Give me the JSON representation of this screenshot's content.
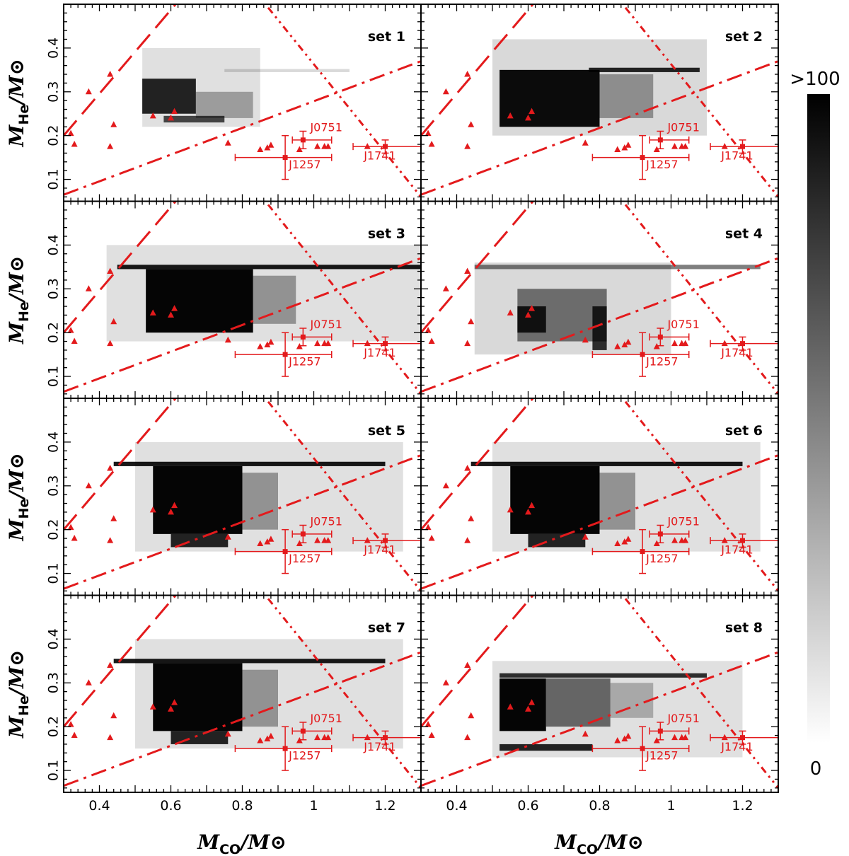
{
  "chart_data": {
    "type": "heatmap",
    "title": "",
    "xlabel": "M_CO/M_⊙",
    "ylabel": "M_He/M_⊙",
    "x_label": {
      "main": "M",
      "sub": "CO",
      "rest": "/M",
      "sun": "⊙"
    },
    "y_label": {
      "main": "M",
      "sub": "He",
      "rest": "/M",
      "sun": "⊙"
    },
    "xlim": [
      0.3,
      1.3
    ],
    "ylim": [
      0.05,
      0.5
    ],
    "xticks": [
      "0.4",
      "0.6",
      "0.8",
      "1",
      "1.2"
    ],
    "yticks": [
      "0.1",
      "0.2",
      "0.3",
      "0.4"
    ],
    "colorbar": {
      "min_label": "0",
      "max_label": ">100"
    },
    "colors": {
      "data": "#e31a1c",
      "density": "#000000"
    },
    "reference_lines": [
      {
        "style": "dashed",
        "points": [
          [
            0.3,
            0.2
          ],
          [
            0.65,
            0.535
          ]
        ]
      },
      {
        "style": "dash-dot",
        "points": [
          [
            0.3,
            0.065
          ],
          [
            1.3,
            0.37
          ]
        ]
      },
      {
        "style": "dash-dot-dot",
        "points": [
          [
            0.83,
            0.535
          ],
          [
            1.3,
            0.06
          ]
        ]
      }
    ],
    "points": [
      {
        "x": 0.32,
        "y": 0.205
      },
      {
        "x": 0.33,
        "y": 0.18
      },
      {
        "x": 0.37,
        "y": 0.3
      },
      {
        "x": 0.43,
        "y": 0.34
      },
      {
        "x": 0.43,
        "y": 0.175
      },
      {
        "x": 0.44,
        "y": 0.225
      },
      {
        "x": 0.55,
        "y": 0.245
      },
      {
        "x": 0.6,
        "y": 0.24
      },
      {
        "x": 0.61,
        "y": 0.255
      },
      {
        "x": 0.76,
        "y": 0.183
      },
      {
        "x": 0.85,
        "y": 0.168
      },
      {
        "x": 0.87,
        "y": 0.172
      },
      {
        "x": 0.88,
        "y": 0.178
      },
      {
        "x": 0.96,
        "y": 0.168
      },
      {
        "x": 1.01,
        "y": 0.175
      },
      {
        "x": 1.03,
        "y": 0.175
      },
      {
        "x": 1.04,
        "y": 0.175
      },
      {
        "x": 1.15,
        "y": 0.175
      }
    ],
    "observations": [
      {
        "label": "J0751",
        "x": 0.97,
        "y": 0.19,
        "xerr": [
          0.03,
          0.08
        ],
        "yerr": 0.02,
        "label_x": 0.99,
        "label_y": 0.21
      },
      {
        "label": "J1257",
        "x": 0.92,
        "y": 0.15,
        "xerr": [
          0.14,
          0.13
        ],
        "yerr": 0.05,
        "label_x": 0.93,
        "label_y": 0.125
      },
      {
        "label": "J1741",
        "x": 1.2,
        "y": 0.175,
        "xerr": [
          0.09,
          0.1
        ],
        "yerr": 0.015,
        "label_x": 1.14,
        "label_y": 0.145
      }
    ],
    "panels": [
      {
        "label": "set 1",
        "regions": [
          {
            "x": [
              0.52,
              0.85
            ],
            "y": [
              0.22,
              0.4
            ],
            "w": 0.12
          },
          {
            "x": [
              0.52,
              0.67
            ],
            "y": [
              0.25,
              0.33
            ],
            "w": 0.85
          },
          {
            "x": [
              0.67,
              0.83
            ],
            "y": [
              0.24,
              0.3
            ],
            "w": 0.3
          },
          {
            "x": [
              0.58,
              0.75
            ],
            "y": [
              0.23,
              0.245
            ],
            "w": 0.7
          },
          {
            "x": [
              0.75,
              1.1
            ],
            "y": [
              0.345,
              0.352
            ],
            "w": 0.15
          }
        ]
      },
      {
        "label": "set 2",
        "regions": [
          {
            "x": [
              0.5,
              1.1
            ],
            "y": [
              0.2,
              0.42
            ],
            "w": 0.15
          },
          {
            "x": [
              0.52,
              0.8
            ],
            "y": [
              0.22,
              0.35
            ],
            "w": 0.95
          },
          {
            "x": [
              0.8,
              0.95
            ],
            "y": [
              0.24,
              0.34
            ],
            "w": 0.35
          },
          {
            "x": [
              0.77,
              1.08
            ],
            "y": [
              0.345,
              0.355
            ],
            "w": 0.85
          }
        ]
      },
      {
        "label": "set 3",
        "regions": [
          {
            "x": [
              0.42,
              1.3
            ],
            "y": [
              0.18,
              0.4
            ],
            "w": 0.12
          },
          {
            "x": [
              0.53,
              0.83
            ],
            "y": [
              0.2,
              0.345
            ],
            "w": 0.98
          },
          {
            "x": [
              0.83,
              0.95
            ],
            "y": [
              0.22,
              0.33
            ],
            "w": 0.35
          },
          {
            "x": [
              0.45,
              1.3
            ],
            "y": [
              0.345,
              0.355
            ],
            "w": 0.9
          }
        ]
      },
      {
        "label": "set 4",
        "regions": [
          {
            "x": [
              0.45,
              1.0
            ],
            "y": [
              0.15,
              0.36
            ],
            "w": 0.15
          },
          {
            "x": [
              0.57,
              0.82
            ],
            "y": [
              0.18,
              0.3
            ],
            "w": 0.5
          },
          {
            "x": [
              0.57,
              0.65
            ],
            "y": [
              0.2,
              0.26
            ],
            "w": 0.85
          },
          {
            "x": [
              0.78,
              0.82
            ],
            "y": [
              0.16,
              0.26
            ],
            "w": 0.8
          },
          {
            "x": [
              0.45,
              1.25
            ],
            "y": [
              0.345,
              0.355
            ],
            "w": 0.5
          }
        ]
      },
      {
        "label": "set 5",
        "regions": [
          {
            "x": [
              0.5,
              1.25
            ],
            "y": [
              0.15,
              0.4
            ],
            "w": 0.12
          },
          {
            "x": [
              0.55,
              0.8
            ],
            "y": [
              0.19,
              0.345
            ],
            "w": 0.98
          },
          {
            "x": [
              0.6,
              0.76
            ],
            "y": [
              0.16,
              0.19
            ],
            "w": 0.85
          },
          {
            "x": [
              0.8,
              0.9
            ],
            "y": [
              0.2,
              0.33
            ],
            "w": 0.35
          },
          {
            "x": [
              0.44,
              1.2
            ],
            "y": [
              0.345,
              0.355
            ],
            "w": 0.9
          }
        ]
      },
      {
        "label": "set 6",
        "regions": [
          {
            "x": [
              0.5,
              1.25
            ],
            "y": [
              0.15,
              0.4
            ],
            "w": 0.12
          },
          {
            "x": [
              0.55,
              0.8
            ],
            "y": [
              0.19,
              0.345
            ],
            "w": 0.98
          },
          {
            "x": [
              0.6,
              0.76
            ],
            "y": [
              0.16,
              0.19
            ],
            "w": 0.85
          },
          {
            "x": [
              0.8,
              0.9
            ],
            "y": [
              0.2,
              0.33
            ],
            "w": 0.35
          },
          {
            "x": [
              0.44,
              1.2
            ],
            "y": [
              0.345,
              0.355
            ],
            "w": 0.9
          }
        ]
      },
      {
        "label": "set 7",
        "regions": [
          {
            "x": [
              0.5,
              1.25
            ],
            "y": [
              0.15,
              0.4
            ],
            "w": 0.12
          },
          {
            "x": [
              0.55,
              0.8
            ],
            "y": [
              0.19,
              0.345
            ],
            "w": 0.98
          },
          {
            "x": [
              0.6,
              0.76
            ],
            "y": [
              0.16,
              0.19
            ],
            "w": 0.85
          },
          {
            "x": [
              0.8,
              0.9
            ],
            "y": [
              0.2,
              0.33
            ],
            "w": 0.35
          },
          {
            "x": [
              0.44,
              1.2
            ],
            "y": [
              0.345,
              0.355
            ],
            "w": 0.9
          }
        ]
      },
      {
        "label": "set 8",
        "regions": [
          {
            "x": [
              0.5,
              1.2
            ],
            "y": [
              0.13,
              0.35
            ],
            "w": 0.12
          },
          {
            "x": [
              0.52,
              0.65
            ],
            "y": [
              0.19,
              0.31
            ],
            "w": 0.98
          },
          {
            "x": [
              0.65,
              0.83
            ],
            "y": [
              0.2,
              0.31
            ],
            "w": 0.55
          },
          {
            "x": [
              0.83,
              0.95
            ],
            "y": [
              0.22,
              0.3
            ],
            "w": 0.25
          },
          {
            "x": [
              0.52,
              0.78
            ],
            "y": [
              0.145,
              0.16
            ],
            "w": 0.85
          },
          {
            "x": [
              0.52,
              1.1
            ],
            "y": [
              0.312,
              0.322
            ],
            "w": 0.8
          }
        ]
      }
    ]
  }
}
